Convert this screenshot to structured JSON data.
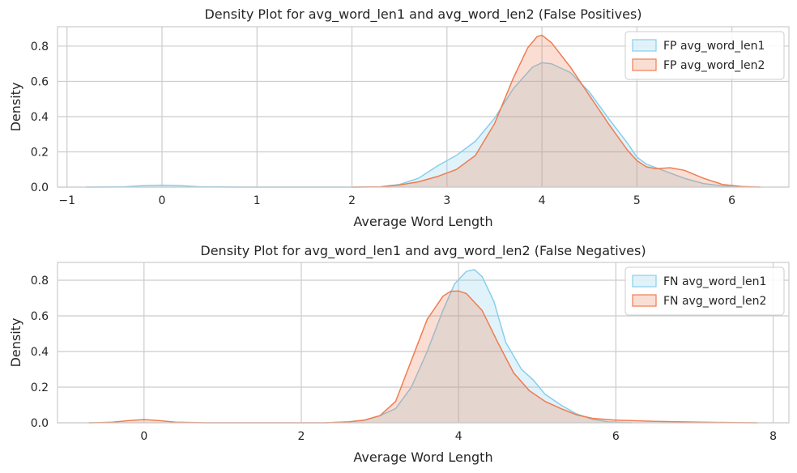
{
  "chart_data": [
    {
      "type": "area",
      "title": "Density Plot for avg_word_len1 and avg_word_len2 (False Positives)",
      "xlabel": "Average Word Length",
      "ylabel": "Density",
      "xlim": [
        -1.1,
        6.6
      ],
      "ylim": [
        0,
        0.91
      ],
      "xticks": [
        -1,
        0,
        1,
        2,
        3,
        4,
        5,
        6
      ],
      "yticks": [
        0.0,
        0.2,
        0.4,
        0.6,
        0.8
      ],
      "grid": true,
      "legend_position": "top-right",
      "series": [
        {
          "name": "FP avg_word_len1",
          "color": "#87ceeb",
          "points": [
            [
              -0.8,
              0
            ],
            [
              -0.4,
              0.002
            ],
            [
              -0.2,
              0.008
            ],
            [
              0,
              0.011
            ],
            [
              0.2,
              0.008
            ],
            [
              0.4,
              0.002
            ],
            [
              0.8,
              0
            ],
            [
              2.0,
              0
            ],
            [
              2.3,
              0.002
            ],
            [
              2.5,
              0.015
            ],
            [
              2.7,
              0.05
            ],
            [
              2.9,
              0.12
            ],
            [
              3.1,
              0.18
            ],
            [
              3.3,
              0.26
            ],
            [
              3.5,
              0.39
            ],
            [
              3.7,
              0.56
            ],
            [
              3.9,
              0.68
            ],
            [
              4.0,
              0.706
            ],
            [
              4.1,
              0.7
            ],
            [
              4.3,
              0.65
            ],
            [
              4.5,
              0.54
            ],
            [
              4.7,
              0.39
            ],
            [
              4.9,
              0.25
            ],
            [
              5.0,
              0.17
            ],
            [
              5.1,
              0.13
            ],
            [
              5.3,
              0.09
            ],
            [
              5.5,
              0.05
            ],
            [
              5.7,
              0.02
            ],
            [
              5.9,
              0.007
            ],
            [
              6.2,
              0
            ]
          ]
        },
        {
          "name": "FP avg_word_len2",
          "color": "#f07c50",
          "points": [
            [
              2.0,
              0
            ],
            [
              2.3,
              0.002
            ],
            [
              2.5,
              0.012
            ],
            [
              2.7,
              0.03
            ],
            [
              2.9,
              0.06
            ],
            [
              3.1,
              0.1
            ],
            [
              3.3,
              0.18
            ],
            [
              3.5,
              0.36
            ],
            [
              3.7,
              0.62
            ],
            [
              3.85,
              0.79
            ],
            [
              3.95,
              0.855
            ],
            [
              4.0,
              0.862
            ],
            [
              4.1,
              0.82
            ],
            [
              4.3,
              0.68
            ],
            [
              4.5,
              0.52
            ],
            [
              4.7,
              0.36
            ],
            [
              4.9,
              0.21
            ],
            [
              5.0,
              0.15
            ],
            [
              5.1,
              0.115
            ],
            [
              5.2,
              0.105
            ],
            [
              5.35,
              0.11
            ],
            [
              5.5,
              0.095
            ],
            [
              5.7,
              0.05
            ],
            [
              5.9,
              0.015
            ],
            [
              6.1,
              0.003
            ],
            [
              6.3,
              0
            ]
          ]
        }
      ]
    },
    {
      "type": "area",
      "title": "Density Plot for avg_word_len1 and avg_word_len2 (False Negatives)",
      "xlabel": "Average Word Length",
      "ylabel": "Density",
      "xlim": [
        -1.1,
        8.2
      ],
      "ylim": [
        0,
        0.9
      ],
      "xticks": [
        0,
        2,
        4,
        6,
        8
      ],
      "yticks": [
        0.0,
        0.2,
        0.4,
        0.6,
        0.8
      ],
      "grid": true,
      "legend_position": "top-right",
      "series": [
        {
          "name": "FN avg_word_len1",
          "color": "#87ceeb",
          "points": [
            [
              2.3,
              0
            ],
            [
              2.6,
              0.005
            ],
            [
              2.8,
              0.015
            ],
            [
              3.0,
              0.04
            ],
            [
              3.2,
              0.08
            ],
            [
              3.4,
              0.2
            ],
            [
              3.6,
              0.4
            ],
            [
              3.8,
              0.63
            ],
            [
              3.95,
              0.78
            ],
            [
              4.1,
              0.85
            ],
            [
              4.2,
              0.86
            ],
            [
              4.3,
              0.82
            ],
            [
              4.45,
              0.68
            ],
            [
              4.6,
              0.45
            ],
            [
              4.8,
              0.3
            ],
            [
              4.95,
              0.24
            ],
            [
              5.1,
              0.16
            ],
            [
              5.3,
              0.1
            ],
            [
              5.5,
              0.05
            ],
            [
              5.7,
              0.02
            ],
            [
              5.9,
              0.005
            ],
            [
              6.2,
              0
            ]
          ]
        },
        {
          "name": "FN avg_word_len2",
          "color": "#f07c50",
          "points": [
            [
              -0.7,
              0
            ],
            [
              -0.4,
              0.003
            ],
            [
              -0.2,
              0.012
            ],
            [
              0,
              0.018
            ],
            [
              0.2,
              0.012
            ],
            [
              0.4,
              0.003
            ],
            [
              0.8,
              0
            ],
            [
              2.3,
              0
            ],
            [
              2.6,
              0.005
            ],
            [
              2.8,
              0.015
            ],
            [
              3.0,
              0.04
            ],
            [
              3.2,
              0.12
            ],
            [
              3.4,
              0.35
            ],
            [
              3.6,
              0.58
            ],
            [
              3.8,
              0.71
            ],
            [
              3.9,
              0.738
            ],
            [
              4.0,
              0.74
            ],
            [
              4.1,
              0.725
            ],
            [
              4.3,
              0.63
            ],
            [
              4.5,
              0.45
            ],
            [
              4.7,
              0.28
            ],
            [
              4.9,
              0.18
            ],
            [
              5.1,
              0.12
            ],
            [
              5.3,
              0.08
            ],
            [
              5.5,
              0.045
            ],
            [
              5.7,
              0.025
            ],
            [
              6.0,
              0.015
            ],
            [
              6.5,
              0.008
            ],
            [
              7.0,
              0.004
            ],
            [
              7.5,
              0.001
            ],
            [
              7.8,
              0
            ]
          ]
        }
      ]
    }
  ]
}
